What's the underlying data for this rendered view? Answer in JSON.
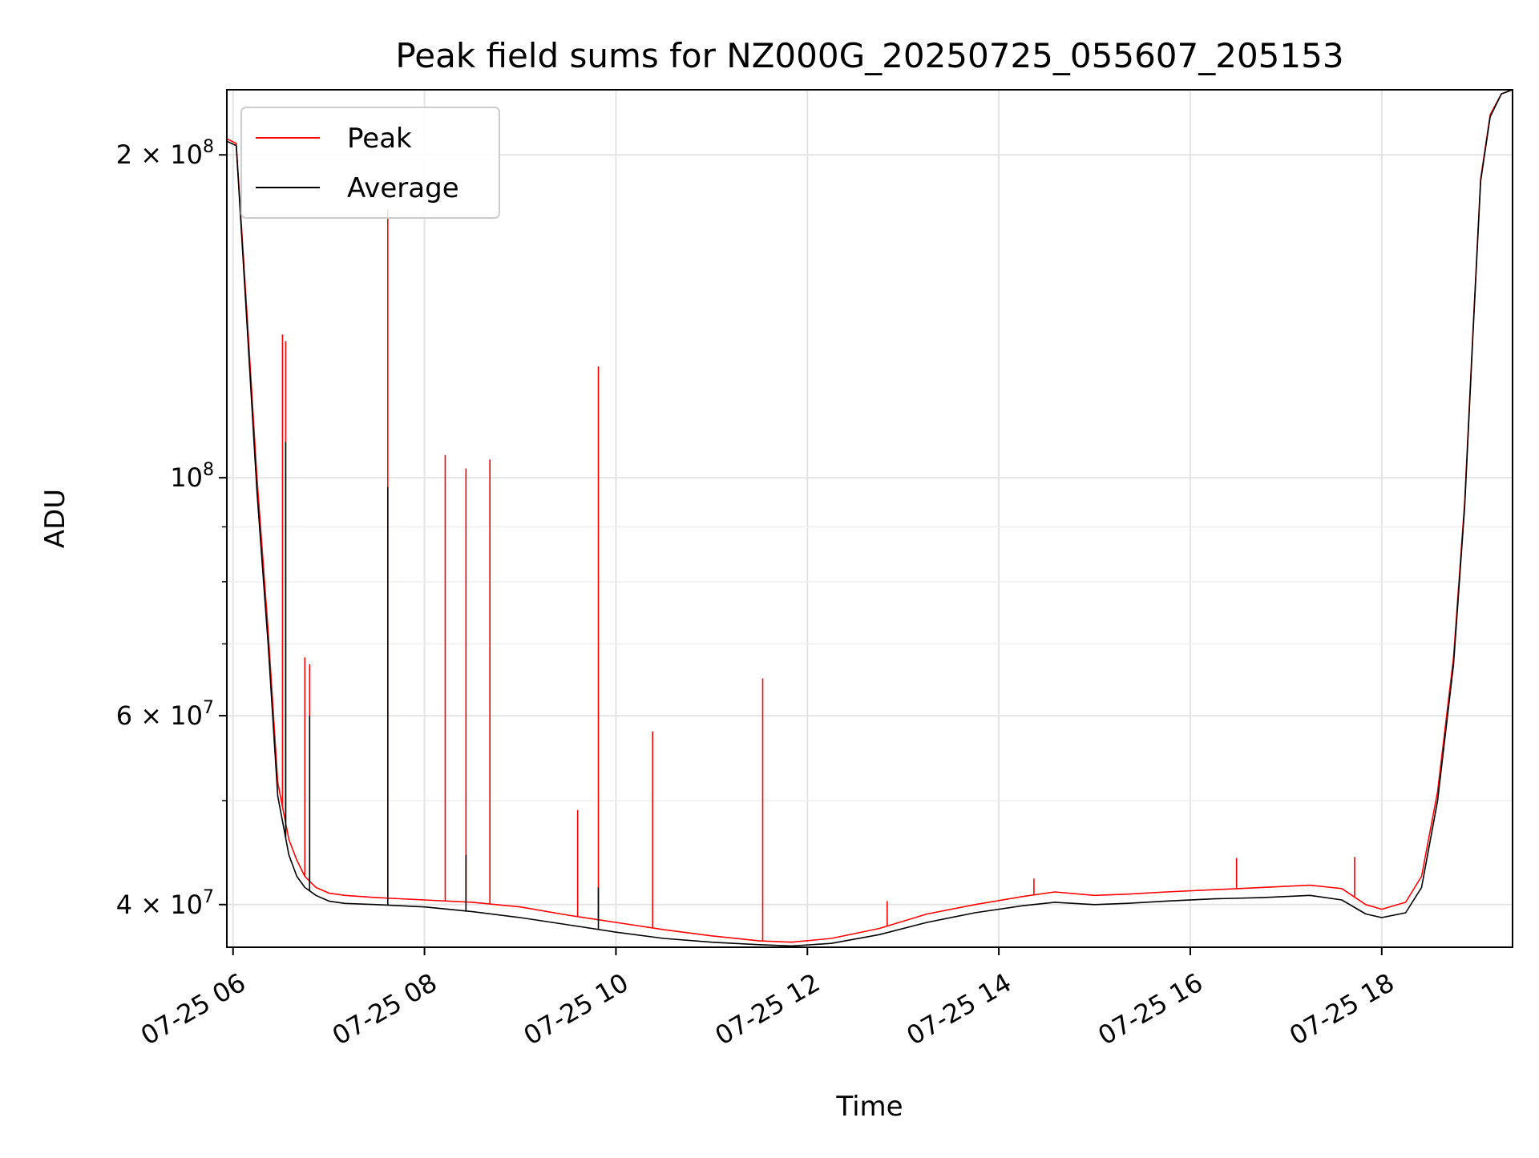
{
  "chart_data": {
    "type": "line",
    "title": "Peak field sums for NZ000G_20250725_055607_205153",
    "xlabel": "Time",
    "ylabel": "ADU",
    "x_scale": "time",
    "y_scale": "log",
    "xlim": [
      "2025-07-25 05:56:07",
      "2025-07-25 19:22:00"
    ],
    "ylim": [
      36500000,
      230000000
    ],
    "grid": true,
    "legend_position": "top-left",
    "x_ticks": [
      {
        "value": "2025-07-25 06:00",
        "label": "07-25 06"
      },
      {
        "value": "2025-07-25 08:00",
        "label": "07-25 08"
      },
      {
        "value": "2025-07-25 10:00",
        "label": "07-25 10"
      },
      {
        "value": "2025-07-25 12:00",
        "label": "07-25 12"
      },
      {
        "value": "2025-07-25 14:00",
        "label": "07-25 14"
      },
      {
        "value": "2025-07-25 16:00",
        "label": "07-25 16"
      },
      {
        "value": "2025-07-25 18:00",
        "label": "07-25 18"
      }
    ],
    "y_ticks": [
      {
        "value": 40000000,
        "label_mantissa": "4 × 10",
        "label_exponent": "7"
      },
      {
        "value": 60000000,
        "label_mantissa": "6 × 10",
        "label_exponent": "7"
      },
      {
        "value": 100000000,
        "label_mantissa": "10",
        "label_exponent": "8"
      },
      {
        "value": 200000000,
        "label_mantissa": "2 × 10",
        "label_exponent": "8"
      }
    ],
    "y_minor_ticks": [
      50000000,
      70000000,
      80000000,
      90000000
    ],
    "series": [
      {
        "name": "Peak",
        "color": "#ff0000",
        "x": [
          "2025-07-25 05:56",
          "2025-07-25 06:02",
          "2025-07-25 06:08",
          "2025-07-25 06:15",
          "2025-07-25 06:22",
          "2025-07-25 06:28",
          "2025-07-25 06:35",
          "2025-07-25 06:40",
          "2025-07-25 06:45",
          "2025-07-25 06:52",
          "2025-07-25 07:00",
          "2025-07-25 07:10",
          "2025-07-25 07:30",
          "2025-07-25 08:00",
          "2025-07-25 08:30",
          "2025-07-25 09:00",
          "2025-07-25 09:30",
          "2025-07-25 10:00",
          "2025-07-25 10:30",
          "2025-07-25 11:00",
          "2025-07-25 11:30",
          "2025-07-25 11:50",
          "2025-07-25 12:15",
          "2025-07-25 12:45",
          "2025-07-25 13:15",
          "2025-07-25 13:45",
          "2025-07-25 14:15",
          "2025-07-25 14:35",
          "2025-07-25 15:00",
          "2025-07-25 15:20",
          "2025-07-25 15:45",
          "2025-07-25 16:15",
          "2025-07-25 16:45",
          "2025-07-25 17:15",
          "2025-07-25 17:35",
          "2025-07-25 17:50",
          "2025-07-25 18:00",
          "2025-07-25 18:15",
          "2025-07-25 18:25",
          "2025-07-25 18:35",
          "2025-07-25 18:45",
          "2025-07-25 18:52",
          "2025-07-25 18:57",
          "2025-07-25 19:02",
          "2025-07-25 19:08",
          "2025-07-25 19:15",
          "2025-07-25 19:22"
        ],
        "y": [
          207000000,
          205000000,
          148000000,
          100000000,
          72000000,
          52000000,
          46000000,
          44000000,
          42500000,
          41500000,
          41000000,
          40800000,
          40600000,
          40400000,
          40200000,
          39800000,
          39100000,
          38500000,
          37900000,
          37400000,
          37000000,
          36900000,
          37200000,
          38000000,
          39200000,
          40000000,
          40700000,
          41100000,
          40800000,
          40900000,
          41100000,
          41300000,
          41500000,
          41700000,
          41400000,
          40000000,
          39600000,
          40200000,
          42500000,
          51000000,
          68000000,
          95000000,
          135000000,
          190000000,
          218000000,
          228000000,
          230000000
        ]
      },
      {
        "name": "Average",
        "color": "#000000",
        "x": [
          "2025-07-25 05:56",
          "2025-07-25 06:02",
          "2025-07-25 06:08",
          "2025-07-25 06:15",
          "2025-07-25 06:22",
          "2025-07-25 06:28",
          "2025-07-25 06:35",
          "2025-07-25 06:40",
          "2025-07-25 06:45",
          "2025-07-25 06:52",
          "2025-07-25 07:00",
          "2025-07-25 07:10",
          "2025-07-25 07:30",
          "2025-07-25 08:00",
          "2025-07-25 08:30",
          "2025-07-25 09:00",
          "2025-07-25 09:30",
          "2025-07-25 10:00",
          "2025-07-25 10:30",
          "2025-07-25 11:00",
          "2025-07-25 11:30",
          "2025-07-25 11:50",
          "2025-07-25 12:15",
          "2025-07-25 12:45",
          "2025-07-25 13:15",
          "2025-07-25 13:45",
          "2025-07-25 14:15",
          "2025-07-25 14:35",
          "2025-07-25 15:00",
          "2025-07-25 15:20",
          "2025-07-25 15:45",
          "2025-07-25 16:15",
          "2025-07-25 16:45",
          "2025-07-25 17:15",
          "2025-07-25 17:35",
          "2025-07-25 17:50",
          "2025-07-25 18:00",
          "2025-07-25 18:15",
          "2025-07-25 18:25",
          "2025-07-25 18:35",
          "2025-07-25 18:45",
          "2025-07-25 18:52",
          "2025-07-25 18:57",
          "2025-07-25 19:02",
          "2025-07-25 19:08",
          "2025-07-25 19:15",
          "2025-07-25 19:22"
        ],
        "y": [
          206000000,
          204000000,
          145000000,
          97000000,
          70000000,
          50500000,
          44500000,
          42500000,
          41500000,
          40800000,
          40300000,
          40100000,
          40000000,
          39800000,
          39400000,
          38900000,
          38300000,
          37700000,
          37200000,
          36900000,
          36700000,
          36600000,
          36800000,
          37500000,
          38500000,
          39300000,
          39900000,
          40200000,
          40000000,
          40100000,
          40300000,
          40500000,
          40600000,
          40800000,
          40400000,
          39200000,
          38900000,
          39300000,
          41500000,
          50000000,
          67000000,
          94000000,
          134000000,
          189000000,
          217000000,
          228000000,
          230000000
        ]
      }
    ],
    "spikes": [
      {
        "series": "Peak",
        "x": "2025-07-25 06:31",
        "y": 136000000
      },
      {
        "series": "Peak",
        "x": "2025-07-25 06:33",
        "y": 134000000
      },
      {
        "series": "Peak",
        "x": "2025-07-25 06:45",
        "y": 68000000
      },
      {
        "series": "Peak",
        "x": "2025-07-25 06:48",
        "y": 67000000
      },
      {
        "series": "Peak",
        "x": "2025-07-25 07:37",
        "y": 178000000
      },
      {
        "series": "Peak",
        "x": "2025-07-25 08:13",
        "y": 105000000
      },
      {
        "series": "Peak",
        "x": "2025-07-25 08:26",
        "y": 102000000
      },
      {
        "series": "Peak",
        "x": "2025-07-25 08:41",
        "y": 104000000
      },
      {
        "series": "Peak",
        "x": "2025-07-25 09:36",
        "y": 49000000
      },
      {
        "series": "Peak",
        "x": "2025-07-25 09:49",
        "y": 127000000
      },
      {
        "series": "Peak",
        "x": "2025-07-25 10:23",
        "y": 58000000
      },
      {
        "series": "Peak",
        "x": "2025-07-25 11:32",
        "y": 65000000
      },
      {
        "series": "Peak",
        "x": "2025-07-25 12:50",
        "y": 40300000
      },
      {
        "series": "Peak",
        "x": "2025-07-25 14:22",
        "y": 42300000
      },
      {
        "series": "Peak",
        "x": "2025-07-25 16:29",
        "y": 44200000
      },
      {
        "series": "Peak",
        "x": "2025-07-25 17:43",
        "y": 44300000
      },
      {
        "series": "Average",
        "x": "2025-07-25 06:33",
        "y": 108000000
      },
      {
        "series": "Average",
        "x": "2025-07-25 06:48",
        "y": 60000000
      },
      {
        "series": "Average",
        "x": "2025-07-25 07:37",
        "y": 98000000
      },
      {
        "series": "Average",
        "x": "2025-07-25 08:26",
        "y": 44500000
      },
      {
        "series": "Average",
        "x": "2025-07-25 09:49",
        "y": 41500000
      }
    ]
  }
}
